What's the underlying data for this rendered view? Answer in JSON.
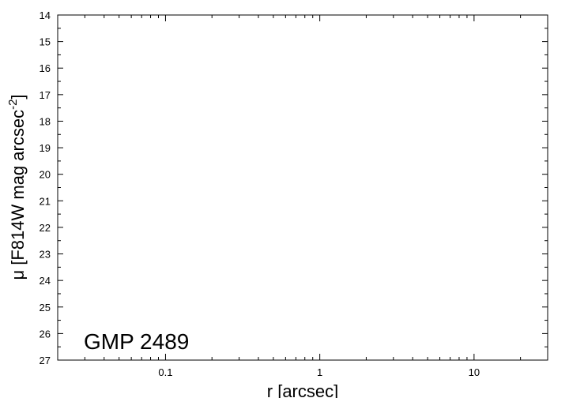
{
  "chart_data": {
    "type": "scatter",
    "xscale": "log",
    "xlim": [
      0.02,
      30
    ],
    "ylim": [
      27,
      14
    ],
    "y_inverted": true,
    "x_major_ticks": [
      0.1,
      1,
      10
    ],
    "x_tick_labels": [
      "0.1",
      "1",
      "10"
    ],
    "y_major_ticks": [
      14,
      15,
      16,
      17,
      18,
      19,
      20,
      21,
      22,
      23,
      24,
      25,
      26,
      27
    ],
    "y_tick_labels": [
      "14",
      "15",
      "16",
      "17",
      "18",
      "19",
      "20",
      "21",
      "22",
      "23",
      "24",
      "25",
      "26",
      "27"
    ],
    "xlabel": "r [arcsec]",
    "ylabel_main": "μ [F814W mag arcsec",
    "ylabel_sup": "-2",
    "ylabel_close": "]",
    "annotation": "GMP 2489",
    "grid": false,
    "series": []
  }
}
